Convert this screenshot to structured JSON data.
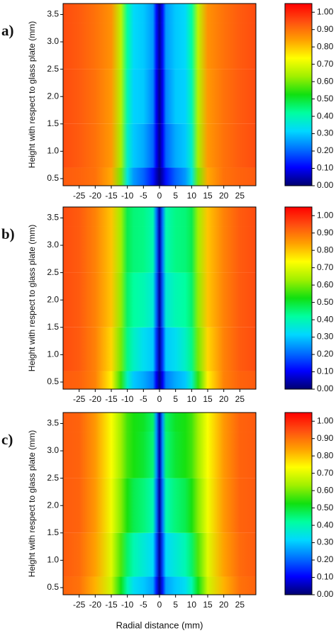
{
  "chart_data": [
    {
      "type": "heatmap",
      "panel_label": "a)",
      "ylabel": "Height with respect to glass plate (mm)",
      "x": [
        -30,
        -25,
        -20,
        -15,
        -12,
        -10,
        -8,
        -5,
        -2,
        -1,
        0,
        1,
        2,
        5,
        8,
        10,
        12,
        15,
        20,
        25,
        30
      ],
      "y": [
        0.4,
        1.0,
        2.0,
        3.0,
        3.7
      ],
      "z": [
        [
          0.93,
          0.92,
          0.9,
          0.83,
          0.6,
          0.35,
          0.25,
          0.2,
          0.12,
          0.06,
          0.01,
          0.06,
          0.12,
          0.2,
          0.25,
          0.35,
          0.6,
          0.83,
          0.9,
          0.92,
          0.93
        ],
        [
          0.95,
          0.93,
          0.9,
          0.85,
          0.64,
          0.38,
          0.3,
          0.27,
          0.2,
          0.1,
          0.02,
          0.1,
          0.2,
          0.27,
          0.3,
          0.38,
          0.64,
          0.85,
          0.9,
          0.93,
          0.95
        ],
        [
          0.95,
          0.93,
          0.9,
          0.85,
          0.65,
          0.4,
          0.31,
          0.3,
          0.23,
          0.1,
          0.02,
          0.1,
          0.23,
          0.3,
          0.31,
          0.4,
          0.65,
          0.85,
          0.9,
          0.93,
          0.95
        ],
        [
          0.95,
          0.93,
          0.9,
          0.86,
          0.66,
          0.42,
          0.32,
          0.3,
          0.25,
          0.12,
          0.03,
          0.12,
          0.25,
          0.3,
          0.32,
          0.42,
          0.66,
          0.86,
          0.9,
          0.93,
          0.95
        ],
        [
          0.95,
          0.93,
          0.9,
          0.86,
          0.66,
          0.42,
          0.32,
          0.3,
          0.25,
          0.12,
          0.03,
          0.12,
          0.25,
          0.3,
          0.32,
          0.42,
          0.66,
          0.86,
          0.9,
          0.93,
          0.95
        ]
      ],
      "xlim": [
        -30,
        30
      ],
      "ylim": [
        0.37,
        3.7
      ],
      "zlim": [
        0,
        1.05
      ],
      "xticks": [
        -25,
        -20,
        -15,
        -10,
        -5,
        0,
        5,
        10,
        15,
        20,
        25
      ],
      "yticks": [
        0.5,
        {
          "value": 1,
          "label": "1.0"
        },
        1.5,
        {
          "value": 2,
          "label": "2.0"
        },
        2.5,
        {
          "value": 3,
          "label": "3.0"
        },
        3.5
      ],
      "zticks": [
        {
          "value": 0,
          "label": "0.00"
        },
        {
          "value": 0.1,
          "label": "0.10"
        },
        {
          "value": 0.2,
          "label": "0.20"
        },
        {
          "value": 0.3,
          "label": "0.30"
        },
        {
          "value": 0.4,
          "label": "0.40"
        },
        {
          "value": 0.5,
          "label": "0.50"
        },
        {
          "value": 0.6,
          "label": "0.60"
        },
        {
          "value": 0.7,
          "label": "0.70"
        },
        {
          "value": 0.8,
          "label": "0.80"
        },
        {
          "value": 0.9,
          "label": "0.90"
        },
        {
          "value": 1,
          "label": "1.00"
        }
      ],
      "colormap": [
        "#000070",
        "#0000ff",
        "#0070ff",
        "#00d8ff",
        "#00ffa0",
        "#10e010",
        "#a0f000",
        "#ffff00",
        "#ffa000",
        "#ff5010",
        "#ff0000"
      ]
    },
    {
      "type": "heatmap",
      "panel_label": "b)",
      "ylabel": "Height with respect to glass plate (mm)",
      "x": [
        -30,
        -25,
        -20,
        -15,
        -12,
        -10,
        -8,
        -5,
        -2,
        -1,
        0,
        1,
        2,
        5,
        8,
        10,
        12,
        15,
        20,
        25,
        30
      ],
      "y": [
        0.4,
        1.0,
        2.0,
        3.0,
        3.7
      ],
      "z": [
        [
          0.93,
          0.92,
          0.88,
          0.75,
          0.55,
          0.38,
          0.3,
          0.27,
          0.22,
          0.1,
          0.02,
          0.1,
          0.22,
          0.27,
          0.3,
          0.38,
          0.55,
          0.75,
          0.88,
          0.92,
          0.93
        ],
        [
          0.95,
          0.93,
          0.88,
          0.78,
          0.6,
          0.44,
          0.38,
          0.33,
          0.3,
          0.16,
          0.03,
          0.16,
          0.3,
          0.33,
          0.38,
          0.44,
          0.6,
          0.78,
          0.88,
          0.93,
          0.95
        ],
        [
          0.95,
          0.93,
          0.88,
          0.8,
          0.62,
          0.46,
          0.42,
          0.4,
          0.36,
          0.2,
          0.03,
          0.2,
          0.36,
          0.4,
          0.42,
          0.46,
          0.62,
          0.8,
          0.88,
          0.93,
          0.95
        ],
        [
          0.95,
          0.93,
          0.88,
          0.8,
          0.63,
          0.48,
          0.45,
          0.44,
          0.4,
          0.22,
          0.04,
          0.22,
          0.4,
          0.44,
          0.45,
          0.48,
          0.63,
          0.8,
          0.88,
          0.93,
          0.95
        ],
        [
          0.95,
          0.93,
          0.88,
          0.8,
          0.63,
          0.48,
          0.45,
          0.44,
          0.4,
          0.22,
          0.04,
          0.22,
          0.4,
          0.44,
          0.45,
          0.48,
          0.63,
          0.8,
          0.88,
          0.93,
          0.95
        ]
      ],
      "xlim": [
        -30,
        30
      ],
      "ylim": [
        0.37,
        3.7
      ],
      "zlim": [
        0,
        1.05
      ],
      "xticks": [
        -25,
        -20,
        -15,
        -10,
        -5,
        0,
        5,
        10,
        15,
        20,
        25
      ],
      "yticks": [
        0.5,
        {
          "value": 1,
          "label": "1.0"
        },
        1.5,
        {
          "value": 2,
          "label": "2.0"
        },
        2.5,
        {
          "value": 3,
          "label": "3.0"
        },
        3.5
      ],
      "zticks": [
        {
          "value": 0,
          "label": "0.00"
        },
        {
          "value": 0.1,
          "label": "0.10"
        },
        {
          "value": 0.2,
          "label": "0.20"
        },
        {
          "value": 0.3,
          "label": "0.30"
        },
        {
          "value": 0.4,
          "label": "0.40"
        },
        {
          "value": 0.5,
          "label": "0.50"
        },
        {
          "value": 0.6,
          "label": "0.60"
        },
        {
          "value": 0.7,
          "label": "0.70"
        },
        {
          "value": 0.8,
          "label": "0.80"
        },
        {
          "value": 0.9,
          "label": "0.90"
        },
        {
          "value": 1,
          "label": "1.00"
        }
      ],
      "colormap": [
        "#000070",
        "#0000ff",
        "#0070ff",
        "#00d8ff",
        "#00ffa0",
        "#10e010",
        "#a0f000",
        "#ffff00",
        "#ffa000",
        "#ff5010",
        "#ff0000"
      ]
    },
    {
      "type": "heatmap",
      "panel_label": "c)",
      "ylabel": "Height with respect to glass plate (mm)",
      "xlabel": "Radial distance (mm)",
      "x": [
        -30,
        -25,
        -20,
        -15,
        -12,
        -10,
        -8,
        -5,
        -2,
        -1,
        0,
        1,
        2,
        5,
        8,
        10,
        12,
        15,
        20,
        25,
        30
      ],
      "y": [
        0.4,
        1.0,
        2.0,
        3.0,
        3.7
      ],
      "z": [
        [
          0.92,
          0.9,
          0.82,
          0.68,
          0.52,
          0.4,
          0.33,
          0.3,
          0.26,
          0.13,
          0.02,
          0.13,
          0.26,
          0.3,
          0.33,
          0.4,
          0.52,
          0.68,
          0.82,
          0.9,
          0.92
        ],
        [
          0.93,
          0.91,
          0.84,
          0.7,
          0.57,
          0.46,
          0.4,
          0.36,
          0.32,
          0.18,
          0.03,
          0.18,
          0.32,
          0.36,
          0.4,
          0.46,
          0.57,
          0.7,
          0.84,
          0.91,
          0.93
        ],
        [
          0.93,
          0.92,
          0.85,
          0.72,
          0.61,
          0.53,
          0.48,
          0.45,
          0.4,
          0.22,
          0.03,
          0.22,
          0.4,
          0.45,
          0.48,
          0.53,
          0.61,
          0.72,
          0.85,
          0.92,
          0.93
        ],
        [
          0.93,
          0.92,
          0.85,
          0.73,
          0.63,
          0.56,
          0.53,
          0.5,
          0.45,
          0.25,
          0.04,
          0.25,
          0.45,
          0.5,
          0.53,
          0.56,
          0.63,
          0.73,
          0.85,
          0.92,
          0.93
        ],
        [
          0.93,
          0.92,
          0.85,
          0.73,
          0.63,
          0.56,
          0.53,
          0.51,
          0.46,
          0.25,
          0.04,
          0.25,
          0.46,
          0.51,
          0.53,
          0.56,
          0.63,
          0.73,
          0.85,
          0.92,
          0.93
        ]
      ],
      "xlim": [
        -30,
        30
      ],
      "ylim": [
        0.37,
        3.7
      ],
      "zlim": [
        0,
        1.05
      ],
      "xticks": [
        -25,
        -20,
        -15,
        -10,
        -5,
        0,
        5,
        10,
        15,
        20,
        25
      ],
      "yticks": [
        0.5,
        {
          "value": 1,
          "label": "1.0"
        },
        1.5,
        {
          "value": 2,
          "label": "2.0"
        },
        2.5,
        {
          "value": 3,
          "label": "3.0"
        },
        3.5
      ],
      "zticks": [
        {
          "value": 0,
          "label": "0.00"
        },
        {
          "value": 0.1,
          "label": "0.10"
        },
        {
          "value": 0.2,
          "label": "0.20"
        },
        {
          "value": 0.3,
          "label": "0.30"
        },
        {
          "value": 0.4,
          "label": "0.40"
        },
        {
          "value": 0.5,
          "label": "0.50"
        },
        {
          "value": 0.6,
          "label": "0.60"
        },
        {
          "value": 0.7,
          "label": "0.70"
        },
        {
          "value": 0.8,
          "label": "0.80"
        },
        {
          "value": 0.9,
          "label": "0.90"
        },
        {
          "value": 1,
          "label": "1.00"
        }
      ],
      "colormap": [
        "#000070",
        "#0000ff",
        "#0070ff",
        "#00d8ff",
        "#00ffa0",
        "#10e010",
        "#a0f000",
        "#ffff00",
        "#ffa000",
        "#ff5010",
        "#ff0000"
      ]
    }
  ]
}
